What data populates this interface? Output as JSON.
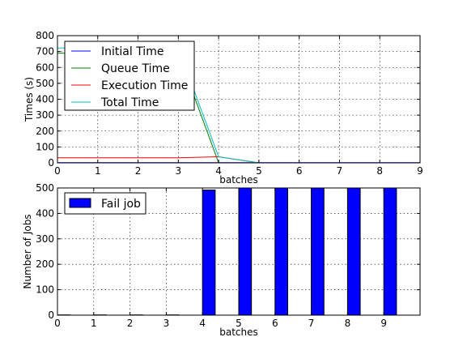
{
  "chart_data": [
    {
      "type": "line",
      "xlabel": "batches",
      "ylabel": "Times (s)",
      "xlim": [
        0,
        9
      ],
      "ylim": [
        0,
        800
      ],
      "xticks": [
        "0",
        "1",
        "2",
        "3",
        "4",
        "5",
        "6",
        "7",
        "8",
        "9"
      ],
      "yticks": [
        "0",
        "100",
        "200",
        "300",
        "400",
        "500",
        "600",
        "700",
        "800"
      ],
      "grid": true,
      "legend_position": "upper-left",
      "x": [
        0,
        1,
        2,
        3,
        4,
        5,
        6,
        7,
        8,
        9
      ],
      "series": [
        {
          "name": "Initial Time",
          "color": "#0000ff",
          "values": [
            1,
            1,
            1,
            1,
            1,
            1,
            1,
            1,
            1,
            1
          ]
        },
        {
          "name": "Queue Time",
          "color": "#008000",
          "values": [
            690,
            690,
            690,
            690,
            0,
            0,
            0,
            0,
            0,
            0
          ]
        },
        {
          "name": "Execution Time",
          "color": "#ff0000",
          "values": [
            32,
            32,
            32,
            32,
            38,
            0,
            0,
            0,
            0,
            0
          ]
        },
        {
          "name": "Total Time",
          "color": "#00bfbf",
          "values": [
            722,
            722,
            722,
            722,
            38,
            0,
            0,
            0,
            0,
            0
          ]
        }
      ]
    },
    {
      "type": "bar",
      "xlabel": "batches",
      "ylabel": "Number of Jobs",
      "xlim": [
        0,
        10
      ],
      "ylim": [
        0,
        500
      ],
      "xticks": [
        "0",
        "1",
        "2",
        "3",
        "4",
        "5",
        "6",
        "7",
        "8",
        "9"
      ],
      "yticks": [
        "0",
        "100",
        "200",
        "300",
        "400",
        "500"
      ],
      "grid": true,
      "legend_position": "upper-left",
      "categories": [
        "0",
        "1",
        "2",
        "3",
        "4",
        "5",
        "6",
        "7",
        "8",
        "9"
      ],
      "series": [
        {
          "name": "Fail job",
          "color": "#0000ff",
          "values": [
            1,
            1,
            1,
            1,
            492,
            500,
            500,
            500,
            500,
            500
          ]
        }
      ]
    }
  ]
}
